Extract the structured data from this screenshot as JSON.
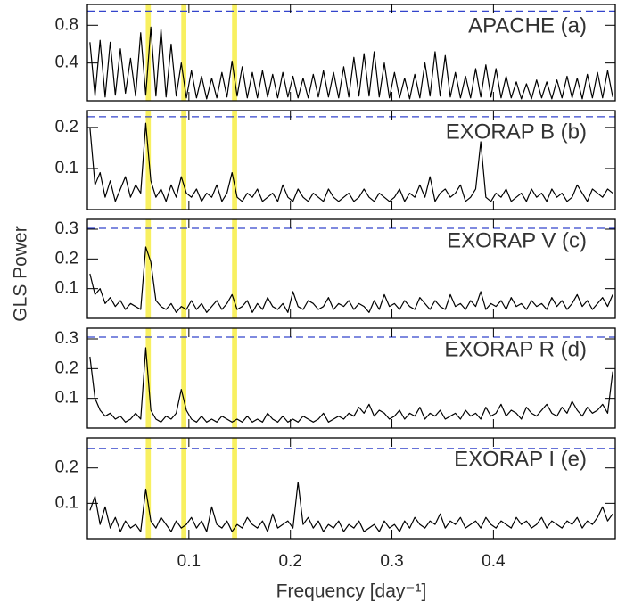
{
  "figure": {
    "y_label": "GLS Power",
    "x_label": "Frequency [day⁻¹]"
  },
  "chart_data": [
    {
      "type": "line",
      "title": "APACHE (a)",
      "color": "#000000",
      "xlim": [
        0,
        0.52
      ],
      "xticks": [
        0.1,
        0.2,
        0.3,
        0.4
      ],
      "xtick_labels": false,
      "ylim": [
        0,
        1.02
      ],
      "yticks": [
        0.4,
        0.8
      ],
      "threshold": 0.95,
      "threshold_color": "#3344cc",
      "bands": [
        0.06,
        0.095,
        0.145
      ],
      "band_width": 0.005,
      "band_color": "#f8f060",
      "x": [
        0.0025,
        0.0075,
        0.0125,
        0.0175,
        0.0225,
        0.0275,
        0.0325,
        0.0375,
        0.0425,
        0.0475,
        0.0525,
        0.0575,
        0.0625,
        0.0675,
        0.0725,
        0.0775,
        0.0825,
        0.0875,
        0.0925,
        0.0975,
        0.1025,
        0.1075,
        0.1125,
        0.1175,
        0.1225,
        0.1275,
        0.1325,
        0.1375,
        0.1425,
        0.1475,
        0.1525,
        0.1575,
        0.1625,
        0.1675,
        0.1725,
        0.1775,
        0.1825,
        0.1875,
        0.1925,
        0.1975,
        0.2025,
        0.2075,
        0.2125,
        0.2175,
        0.2225,
        0.2275,
        0.2325,
        0.2375,
        0.2425,
        0.2475,
        0.2525,
        0.2575,
        0.2625,
        0.2675,
        0.2725,
        0.2775,
        0.2825,
        0.2875,
        0.2925,
        0.2975,
        0.3025,
        0.3075,
        0.3125,
        0.3175,
        0.3225,
        0.3275,
        0.3325,
        0.3375,
        0.3425,
        0.3475,
        0.3525,
        0.3575,
        0.3625,
        0.3675,
        0.3725,
        0.3775,
        0.3825,
        0.3875,
        0.3925,
        0.3975,
        0.4025,
        0.4075,
        0.4125,
        0.4175,
        0.4225,
        0.4275,
        0.4325,
        0.4375,
        0.4425,
        0.4475,
        0.4525,
        0.4575,
        0.4625,
        0.4675,
        0.4725,
        0.4775,
        0.4825,
        0.4875,
        0.4925,
        0.4975,
        0.5025,
        0.5075,
        0.5125,
        0.5175
      ],
      "values": [
        0.62,
        0.05,
        0.64,
        0.04,
        0.62,
        0.06,
        0.55,
        0.08,
        0.45,
        0.05,
        0.72,
        0.06,
        0.78,
        0.05,
        0.76,
        0.04,
        0.6,
        0.05,
        0.4,
        0.03,
        0.32,
        0.03,
        0.26,
        0.02,
        0.24,
        0.03,
        0.3,
        0.04,
        0.42,
        0.05,
        0.36,
        0.03,
        0.3,
        0.03,
        0.32,
        0.04,
        0.28,
        0.03,
        0.3,
        0.04,
        0.26,
        0.03,
        0.24,
        0.03,
        0.28,
        0.04,
        0.32,
        0.04,
        0.3,
        0.03,
        0.36,
        0.04,
        0.46,
        0.05,
        0.5,
        0.05,
        0.52,
        0.04,
        0.4,
        0.03,
        0.3,
        0.03,
        0.24,
        0.02,
        0.28,
        0.03,
        0.4,
        0.05,
        0.52,
        0.05,
        0.48,
        0.04,
        0.3,
        0.03,
        0.26,
        0.03,
        0.34,
        0.04,
        0.38,
        0.04,
        0.34,
        0.03,
        0.26,
        0.03,
        0.2,
        0.02,
        0.18,
        0.02,
        0.22,
        0.03,
        0.2,
        0.02,
        0.22,
        0.03,
        0.26,
        0.03,
        0.24,
        0.02,
        0.28,
        0.03,
        0.3,
        0.03,
        0.32,
        0.04
      ]
    },
    {
      "type": "line",
      "title": "EXORAP B (b)",
      "color": "#000000",
      "xlim": [
        0,
        0.52
      ],
      "xticks": [
        0.1,
        0.2,
        0.3,
        0.4
      ],
      "xtick_labels": false,
      "ylim": [
        0,
        0.241
      ],
      "yticks": [
        0.1,
        0.2
      ],
      "threshold": 0.226,
      "threshold_color": "#3344cc",
      "bands": [
        0.06,
        0.095,
        0.145
      ],
      "band_width": 0.005,
      "band_color": "#f8f060",
      "x": [
        0.0025,
        0.0075,
        0.0125,
        0.0175,
        0.0225,
        0.0275,
        0.0325,
        0.0375,
        0.0425,
        0.0475,
        0.0525,
        0.0575,
        0.0625,
        0.0675,
        0.0725,
        0.0775,
        0.0825,
        0.0875,
        0.0925,
        0.0975,
        0.1025,
        0.1075,
        0.1125,
        0.1175,
        0.1225,
        0.1275,
        0.1325,
        0.1375,
        0.1425,
        0.1475,
        0.1525,
        0.1575,
        0.1625,
        0.1675,
        0.1725,
        0.1775,
        0.1825,
        0.1875,
        0.1925,
        0.1975,
        0.2025,
        0.2075,
        0.2125,
        0.2175,
        0.2225,
        0.2275,
        0.2325,
        0.2375,
        0.2425,
        0.2475,
        0.2525,
        0.2575,
        0.2625,
        0.2675,
        0.2725,
        0.2775,
        0.2825,
        0.2875,
        0.2925,
        0.2975,
        0.3025,
        0.3075,
        0.3125,
        0.3175,
        0.3225,
        0.3275,
        0.3325,
        0.3375,
        0.3425,
        0.3475,
        0.3525,
        0.3575,
        0.3625,
        0.3675,
        0.3725,
        0.3775,
        0.3825,
        0.3875,
        0.3925,
        0.3975,
        0.4025,
        0.4075,
        0.4125,
        0.4175,
        0.4225,
        0.4275,
        0.4325,
        0.4375,
        0.4425,
        0.4475,
        0.4525,
        0.4575,
        0.4625,
        0.4675,
        0.4725,
        0.4775,
        0.4825,
        0.4875,
        0.4925,
        0.4975,
        0.5025,
        0.5075,
        0.5125,
        0.5175
      ],
      "values": [
        0.2,
        0.06,
        0.09,
        0.03,
        0.07,
        0.02,
        0.05,
        0.08,
        0.03,
        0.06,
        0.04,
        0.21,
        0.07,
        0.03,
        0.05,
        0.02,
        0.06,
        0.03,
        0.08,
        0.04,
        0.03,
        0.05,
        0.02,
        0.04,
        0.03,
        0.06,
        0.02,
        0.04,
        0.09,
        0.03,
        0.02,
        0.04,
        0.03,
        0.05,
        0.02,
        0.03,
        0.04,
        0.02,
        0.06,
        0.03,
        0.02,
        0.05,
        0.03,
        0.02,
        0.04,
        0.03,
        0.02,
        0.05,
        0.03,
        0.02,
        0.03,
        0.04,
        0.02,
        0.03,
        0.05,
        0.03,
        0.02,
        0.04,
        0.03,
        0.02,
        0.03,
        0.05,
        0.02,
        0.04,
        0.03,
        0.06,
        0.03,
        0.08,
        0.02,
        0.04,
        0.05,
        0.03,
        0.04,
        0.06,
        0.02,
        0.03,
        0.05,
        0.165,
        0.03,
        0.02,
        0.04,
        0.03,
        0.05,
        0.02,
        0.03,
        0.04,
        0.02,
        0.05,
        0.03,
        0.04,
        0.02,
        0.05,
        0.03,
        0.04,
        0.02,
        0.03,
        0.06,
        0.04,
        0.02,
        0.05,
        0.04,
        0.03,
        0.05,
        0.04
      ]
    },
    {
      "type": "line",
      "title": "EXORAP V (c)",
      "color": "#000000",
      "xlim": [
        0,
        0.52
      ],
      "xticks": [
        0.1,
        0.2,
        0.3,
        0.4
      ],
      "xtick_labels": false,
      "ylim": [
        0,
        0.333
      ],
      "yticks": [
        0.1,
        0.2,
        0.3
      ],
      "threshold": 0.303,
      "threshold_color": "#3344cc",
      "bands": [
        0.06,
        0.095,
        0.145
      ],
      "band_width": 0.005,
      "band_color": "#f8f060",
      "x": [
        0.0025,
        0.0075,
        0.0125,
        0.0175,
        0.0225,
        0.0275,
        0.0325,
        0.0375,
        0.0425,
        0.0475,
        0.0525,
        0.0575,
        0.0625,
        0.0675,
        0.0725,
        0.0775,
        0.0825,
        0.0875,
        0.0925,
        0.0975,
        0.1025,
        0.1075,
        0.1125,
        0.1175,
        0.1225,
        0.1275,
        0.1325,
        0.1375,
        0.1425,
        0.1475,
        0.1525,
        0.1575,
        0.1625,
        0.1675,
        0.1725,
        0.1775,
        0.1825,
        0.1875,
        0.1925,
        0.1975,
        0.2025,
        0.2075,
        0.2125,
        0.2175,
        0.2225,
        0.2275,
        0.2325,
        0.2375,
        0.2425,
        0.2475,
        0.2525,
        0.2575,
        0.2625,
        0.2675,
        0.2725,
        0.2775,
        0.2825,
        0.2875,
        0.2925,
        0.2975,
        0.3025,
        0.3075,
        0.3125,
        0.3175,
        0.3225,
        0.3275,
        0.3325,
        0.3375,
        0.3425,
        0.3475,
        0.3525,
        0.3575,
        0.3625,
        0.3675,
        0.3725,
        0.3775,
        0.3825,
        0.3875,
        0.3925,
        0.3975,
        0.4025,
        0.4075,
        0.4125,
        0.4175,
        0.4225,
        0.4275,
        0.4325,
        0.4375,
        0.4425,
        0.4475,
        0.4525,
        0.4575,
        0.4625,
        0.4675,
        0.4725,
        0.4775,
        0.4825,
        0.4875,
        0.4925,
        0.4975,
        0.5025,
        0.5075,
        0.5125,
        0.5175
      ],
      "values": [
        0.15,
        0.08,
        0.1,
        0.05,
        0.07,
        0.04,
        0.06,
        0.03,
        0.05,
        0.04,
        0.03,
        0.24,
        0.19,
        0.06,
        0.04,
        0.03,
        0.05,
        0.02,
        0.04,
        0.03,
        0.06,
        0.03,
        0.05,
        0.02,
        0.04,
        0.06,
        0.03,
        0.05,
        0.08,
        0.03,
        0.04,
        0.06,
        0.02,
        0.05,
        0.03,
        0.07,
        0.04,
        0.03,
        0.05,
        0.02,
        0.09,
        0.04,
        0.03,
        0.06,
        0.05,
        0.03,
        0.04,
        0.07,
        0.03,
        0.05,
        0.04,
        0.06,
        0.03,
        0.05,
        0.04,
        0.02,
        0.06,
        0.03,
        0.08,
        0.04,
        0.05,
        0.03,
        0.06,
        0.04,
        0.03,
        0.07,
        0.05,
        0.03,
        0.06,
        0.04,
        0.03,
        0.08,
        0.04,
        0.05,
        0.03,
        0.06,
        0.04,
        0.09,
        0.03,
        0.05,
        0.04,
        0.06,
        0.03,
        0.07,
        0.04,
        0.05,
        0.03,
        0.06,
        0.04,
        0.05,
        0.03,
        0.07,
        0.04,
        0.06,
        0.03,
        0.05,
        0.08,
        0.04,
        0.06,
        0.03,
        0.05,
        0.07,
        0.04,
        0.08
      ]
    },
    {
      "type": "line",
      "title": "EXORAP R (d)",
      "color": "#000000",
      "xlim": [
        0,
        0.52
      ],
      "xticks": [
        0.1,
        0.2,
        0.3,
        0.4
      ],
      "xtick_labels": false,
      "ylim": [
        0,
        0.336
      ],
      "yticks": [
        0.1,
        0.2,
        0.3
      ],
      "threshold": 0.306,
      "threshold_color": "#3344cc",
      "bands": [
        0.06,
        0.095,
        0.145
      ],
      "band_width": 0.005,
      "band_color": "#f8f060",
      "x": [
        0.0025,
        0.0075,
        0.0125,
        0.0175,
        0.0225,
        0.0275,
        0.0325,
        0.0375,
        0.0425,
        0.0475,
        0.0525,
        0.0575,
        0.0625,
        0.0675,
        0.0725,
        0.0775,
        0.0825,
        0.0875,
        0.0925,
        0.0975,
        0.1025,
        0.1075,
        0.1125,
        0.1175,
        0.1225,
        0.1275,
        0.1325,
        0.1375,
        0.1425,
        0.1475,
        0.1525,
        0.1575,
        0.1625,
        0.1675,
        0.1725,
        0.1775,
        0.1825,
        0.1875,
        0.1925,
        0.1975,
        0.2025,
        0.2075,
        0.2125,
        0.2175,
        0.2225,
        0.2275,
        0.2325,
        0.2375,
        0.2425,
        0.2475,
        0.2525,
        0.2575,
        0.2625,
        0.2675,
        0.2725,
        0.2775,
        0.2825,
        0.2875,
        0.2925,
        0.2975,
        0.3025,
        0.3075,
        0.3125,
        0.3175,
        0.3225,
        0.3275,
        0.3325,
        0.3375,
        0.3425,
        0.3475,
        0.3525,
        0.3575,
        0.3625,
        0.3675,
        0.3725,
        0.3775,
        0.3825,
        0.3875,
        0.3925,
        0.3975,
        0.4025,
        0.4075,
        0.4125,
        0.4175,
        0.4225,
        0.4275,
        0.4325,
        0.4375,
        0.4425,
        0.4475,
        0.4525,
        0.4575,
        0.4625,
        0.4675,
        0.4725,
        0.4775,
        0.4825,
        0.4875,
        0.4925,
        0.4975,
        0.5025,
        0.5075,
        0.5125,
        0.5175
      ],
      "values": [
        0.24,
        0.1,
        0.06,
        0.04,
        0.05,
        0.03,
        0.04,
        0.02,
        0.03,
        0.05,
        0.03,
        0.27,
        0.06,
        0.03,
        0.02,
        0.04,
        0.03,
        0.05,
        0.13,
        0.06,
        0.03,
        0.02,
        0.04,
        0.02,
        0.03,
        0.02,
        0.04,
        0.03,
        0.02,
        0.03,
        0.02,
        0.04,
        0.02,
        0.03,
        0.02,
        0.05,
        0.03,
        0.02,
        0.04,
        0.02,
        0.03,
        0.02,
        0.04,
        0.03,
        0.02,
        0.03,
        0.05,
        0.02,
        0.03,
        0.04,
        0.03,
        0.05,
        0.04,
        0.07,
        0.05,
        0.08,
        0.04,
        0.06,
        0.05,
        0.03,
        0.04,
        0.06,
        0.03,
        0.05,
        0.04,
        0.07,
        0.03,
        0.05,
        0.04,
        0.06,
        0.03,
        0.04,
        0.05,
        0.03,
        0.06,
        0.04,
        0.05,
        0.03,
        0.07,
        0.04,
        0.05,
        0.08,
        0.04,
        0.06,
        0.05,
        0.03,
        0.07,
        0.05,
        0.04,
        0.06,
        0.08,
        0.05,
        0.04,
        0.07,
        0.05,
        0.09,
        0.06,
        0.04,
        0.07,
        0.05,
        0.06,
        0.08,
        0.05,
        0.19
      ]
    },
    {
      "type": "line",
      "title": "EXORAP I (e)",
      "color": "#000000",
      "xlim": [
        0,
        0.52
      ],
      "xticks": [
        0.1,
        0.2,
        0.3,
        0.4
      ],
      "xtick_labels": true,
      "ylim": [
        0,
        0.285
      ],
      "yticks": [
        0.1,
        0.2
      ],
      "threshold": 0.255,
      "threshold_color": "#3344cc",
      "bands": [
        0.06,
        0.095,
        0.145
      ],
      "band_width": 0.005,
      "band_color": "#f8f060",
      "x": [
        0.0025,
        0.0075,
        0.0125,
        0.0175,
        0.0225,
        0.0275,
        0.0325,
        0.0375,
        0.0425,
        0.0475,
        0.0525,
        0.0575,
        0.0625,
        0.0675,
        0.0725,
        0.0775,
        0.0825,
        0.0875,
        0.0925,
        0.0975,
        0.1025,
        0.1075,
        0.1125,
        0.1175,
        0.1225,
        0.1275,
        0.1325,
        0.1375,
        0.1425,
        0.1475,
        0.1525,
        0.1575,
        0.1625,
        0.1675,
        0.1725,
        0.1775,
        0.1825,
        0.1875,
        0.1925,
        0.1975,
        0.2025,
        0.2075,
        0.2125,
        0.2175,
        0.2225,
        0.2275,
        0.2325,
        0.2375,
        0.2425,
        0.2475,
        0.2525,
        0.2575,
        0.2625,
        0.2675,
        0.2725,
        0.2775,
        0.2825,
        0.2875,
        0.2925,
        0.2975,
        0.3025,
        0.3075,
        0.3125,
        0.3175,
        0.3225,
        0.3275,
        0.3325,
        0.3375,
        0.3425,
        0.3475,
        0.3525,
        0.3575,
        0.3625,
        0.3675,
        0.3725,
        0.3775,
        0.3825,
        0.3875,
        0.3925,
        0.3975,
        0.4025,
        0.4075,
        0.4125,
        0.4175,
        0.4225,
        0.4275,
        0.4325,
        0.4375,
        0.4425,
        0.4475,
        0.4525,
        0.4575,
        0.4625,
        0.4675,
        0.4725,
        0.4775,
        0.4825,
        0.4875,
        0.4925,
        0.4975,
        0.5025,
        0.5075,
        0.5125,
        0.5175
      ],
      "values": [
        0.08,
        0.12,
        0.04,
        0.09,
        0.03,
        0.06,
        0.02,
        0.05,
        0.03,
        0.04,
        0.02,
        0.14,
        0.05,
        0.03,
        0.06,
        0.04,
        0.02,
        0.05,
        0.03,
        0.04,
        0.06,
        0.03,
        0.05,
        0.02,
        0.09,
        0.04,
        0.03,
        0.05,
        0.02,
        0.04,
        0.03,
        0.06,
        0.04,
        0.03,
        0.05,
        0.02,
        0.07,
        0.03,
        0.04,
        0.05,
        0.03,
        0.16,
        0.04,
        0.06,
        0.03,
        0.05,
        0.02,
        0.04,
        0.03,
        0.05,
        0.02,
        0.04,
        0.03,
        0.05,
        0.02,
        0.03,
        0.04,
        0.02,
        0.05,
        0.03,
        0.04,
        0.02,
        0.05,
        0.03,
        0.06,
        0.04,
        0.03,
        0.05,
        0.04,
        0.07,
        0.03,
        0.05,
        0.04,
        0.06,
        0.03,
        0.04,
        0.05,
        0.03,
        0.06,
        0.04,
        0.03,
        0.05,
        0.04,
        0.03,
        0.06,
        0.04,
        0.05,
        0.03,
        0.04,
        0.06,
        0.03,
        0.05,
        0.04,
        0.03,
        0.05,
        0.04,
        0.06,
        0.03,
        0.05,
        0.04,
        0.06,
        0.09,
        0.05,
        0.07
      ]
    }
  ]
}
